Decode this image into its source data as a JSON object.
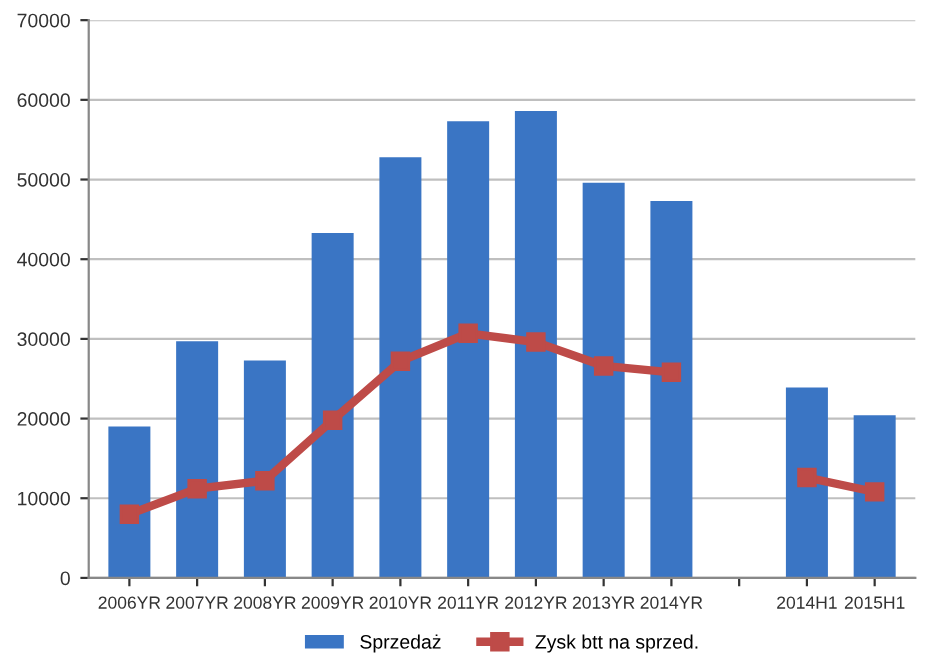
{
  "chart_data": {
    "type": "bar",
    "categories": [
      "2006YR",
      "2007YR",
      "2008YR",
      "2009YR",
      "2010YR",
      "2011YR",
      "2012YR",
      "2013YR",
      "2014YR",
      null,
      "2014H1",
      "2015H1"
    ],
    "series": [
      {
        "name": "Sprzedaż",
        "color": "#3a75c4",
        "values": [
          19000,
          29700,
          27300,
          43300,
          52800,
          57300,
          58600,
          49600,
          47300,
          null,
          23900,
          20400
        ]
      },
      {
        "name": "Zysk btt na sprzed.",
        "type": "line",
        "color": "#be4b48",
        "values": [
          8000,
          11200,
          12200,
          19800,
          27200,
          30700,
          29600,
          26600,
          25800,
          null,
          12600,
          10800
        ]
      }
    ],
    "ylim": [
      0,
      70000
    ],
    "yticks": [
      0,
      10000,
      20000,
      30000,
      40000,
      50000,
      60000,
      70000
    ],
    "grid": "y",
    "legend": "bottom",
    "marker": "square",
    "line_style": "solid"
  }
}
